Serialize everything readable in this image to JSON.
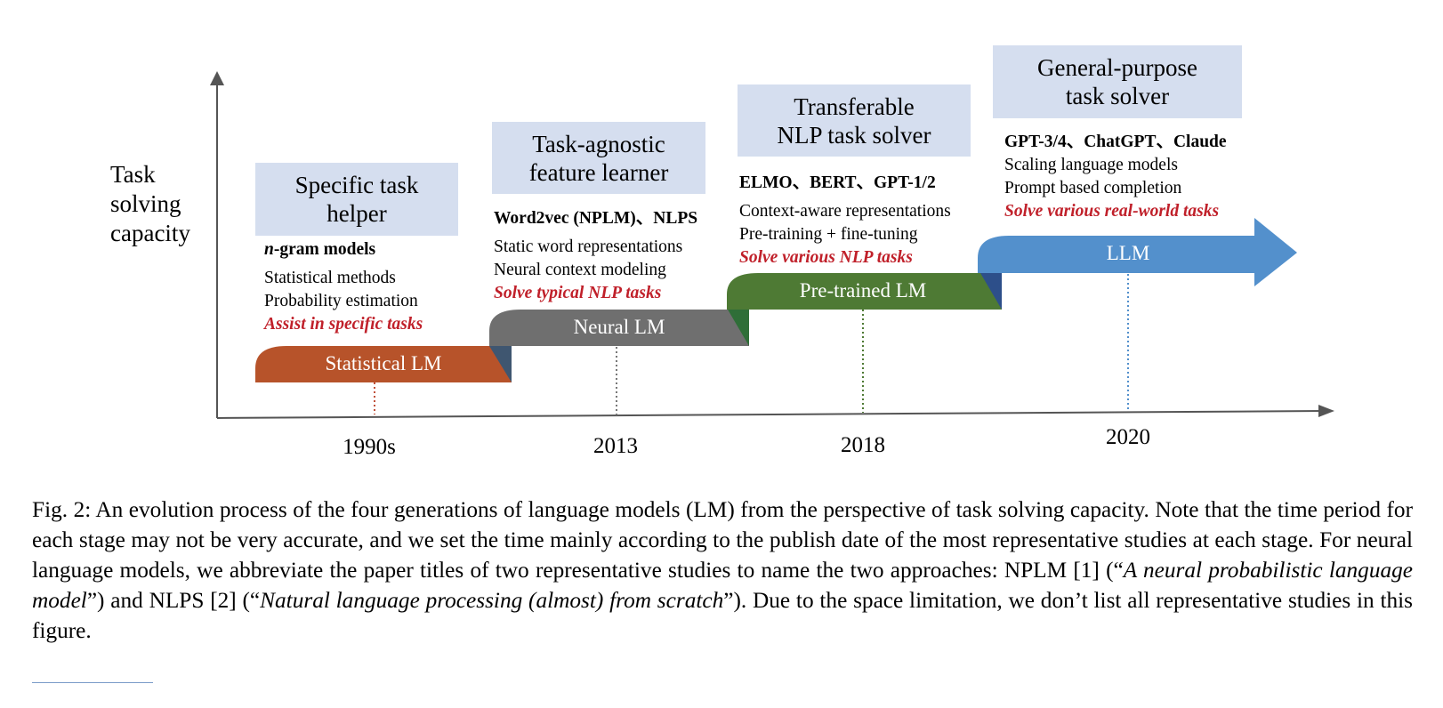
{
  "y_axis_label": "Task\nsolving\ncapacity",
  "stages": [
    {
      "header": "Specific task\nhelper",
      "models": "n-gram models",
      "models_italic_prefix": "n",
      "models_rest": "-gram models",
      "features": [
        "Statistical methods",
        "Probability estimation"
      ],
      "highlight": "Assist in specific tasks",
      "label": "Statistical LM",
      "year": "1990s",
      "color": "#b7532a",
      "fold_color": "#3f5670"
    },
    {
      "header": "Task-agnostic\nfeature learner",
      "models": "Word2vec (NPLM)、NLPS",
      "features": [
        "Static word representations",
        "Neural context modeling"
      ],
      "highlight": "Solve typical NLP tasks",
      "label": "Neural LM",
      "year": "2013",
      "color": "#6f6f6f",
      "fold_color": "#2f6e38"
    },
    {
      "header": "Transferable\nNLP task solver",
      "models": "ELMO、BERT、GPT-1/2",
      "features": [
        "Context-aware representations",
        "Pre-training + fine-tuning"
      ],
      "highlight": "Solve various NLP tasks",
      "label": "Pre-trained LM",
      "year": "2018",
      "color": "#4e7a34",
      "fold_color": "#2d4f8a"
    },
    {
      "header": "General-purpose\ntask solver",
      "models": "GPT-3/4、ChatGPT、Claude",
      "features": [
        "Scaling language models",
        "Prompt based completion"
      ],
      "highlight": "Solve various real-world tasks",
      "label": "LLM",
      "year": "2020",
      "color": "#5390cc"
    }
  ],
  "caption": {
    "p1": "Fig. 2: An evolution process of the four generations of language models (LM) from the perspective of task solving capacity. Note that the time period for each stage may not be very accurate, and we set the time mainly according to the publish date of the most representative studies at each stage. For neural language models, we abbreviate the paper titles of two representative studies to name the two approaches: NPLM [1] (“",
    "i1": "A neural probabilistic language model",
    "p2": "”) and NLPS [2] (“",
    "i2": "Natural language processing (almost) from scratch",
    "p3": "”). Due to the space limitation, we don’t list all representative studies in this figure."
  }
}
